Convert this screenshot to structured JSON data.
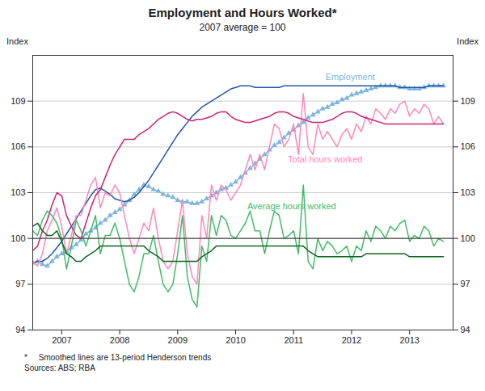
{
  "chart_data": {
    "type": "line",
    "title": "Employment and Hours Worked*",
    "subtitle": "2007 average = 100",
    "ylabel_left": "Index",
    "ylabel_right": "Index",
    "footnote": "*     Smoothed lines are 13-period Henderson trends",
    "sources": "Sources: ABS; RBA",
    "xlim": [
      2006.5,
      2013.75
    ],
    "xticks": [
      2007,
      2008,
      2009,
      2010,
      2011,
      2012,
      2013
    ],
    "ylim": [
      94,
      112
    ],
    "yticks": [
      94,
      97,
      100,
      103,
      106,
      109
    ],
    "y2lim": [
      94,
      112
    ],
    "y2ticks": [
      94,
      97,
      100,
      103,
      106,
      109
    ],
    "grid": "y",
    "hline": {
      "y": 100,
      "color": "#444444"
    },
    "x": [
      2006.5,
      2006.583,
      2006.667,
      2006.75,
      2006.833,
      2006.917,
      2007.0,
      2007.083,
      2007.167,
      2007.25,
      2007.333,
      2007.417,
      2007.5,
      2007.583,
      2007.667,
      2007.75,
      2007.833,
      2007.917,
      2008.0,
      2008.083,
      2008.167,
      2008.25,
      2008.333,
      2008.417,
      2008.5,
      2008.583,
      2008.667,
      2008.75,
      2008.833,
      2008.917,
      2009.0,
      2009.083,
      2009.167,
      2009.25,
      2009.333,
      2009.417,
      2009.5,
      2009.583,
      2009.667,
      2009.75,
      2009.833,
      2009.917,
      2010.0,
      2010.083,
      2010.167,
      2010.25,
      2010.333,
      2010.417,
      2010.5,
      2010.583,
      2010.667,
      2010.75,
      2010.833,
      2010.917,
      2011.0,
      2011.083,
      2011.167,
      2011.25,
      2011.333,
      2011.417,
      2011.5,
      2011.583,
      2011.667,
      2011.75,
      2011.833,
      2011.917,
      2012.0,
      2012.083,
      2012.167,
      2012.25,
      2012.333,
      2012.417,
      2012.5,
      2012.583,
      2012.667,
      2012.75,
      2012.833,
      2012.917,
      2013.0,
      2013.083,
      2013.167,
      2013.25,
      2013.333,
      2013.417,
      2013.5,
      2013.583
    ],
    "series": [
      {
        "color": "#7eb5e0",
        "marker": "triangle",
        "values": [
          98.4,
          98.5,
          98.3,
          98.2,
          98.5,
          98.8,
          99.0,
          99.1,
          99.4,
          99.6,
          99.9,
          100.3,
          100.5,
          100.7,
          101.0,
          101.2,
          101.5,
          101.7,
          101.9,
          102.2,
          102.5,
          102.9,
          103.2,
          103.5,
          103.4,
          103.2,
          103.1,
          102.9,
          102.8,
          102.7,
          102.5,
          102.4,
          102.4,
          102.3,
          102.3,
          102.4,
          102.6,
          102.8,
          103.0,
          103.2,
          103.3,
          103.5,
          103.7,
          104.0,
          104.3,
          104.6,
          104.9,
          105.2,
          105.5,
          105.8,
          106.1,
          106.3,
          106.6,
          106.9,
          107.1,
          107.4,
          107.6,
          107.9,
          108.1,
          108.3,
          108.5,
          108.6,
          108.8,
          108.9,
          109.1,
          109.2,
          109.4,
          109.5,
          109.6,
          109.7,
          109.8,
          109.9,
          110.0,
          110.0,
          110.0,
          110.0,
          109.9,
          109.9,
          109.8,
          109.8,
          109.8,
          109.9,
          110.0,
          110.0,
          110.0,
          110.0
        ]
      },
      {
        "color": "#2255aa",
        "values": [
          98.4,
          98.5,
          98.5,
          98.7,
          99.0,
          99.4,
          99.8,
          100.3,
          100.8,
          101.3,
          101.8,
          102.3,
          102.8,
          103.2,
          103.3,
          103.1,
          102.9,
          102.6,
          102.5,
          102.4,
          102.5,
          102.7,
          103.0,
          103.4,
          103.8,
          104.3,
          104.8,
          105.3,
          105.8,
          106.3,
          106.8,
          107.2,
          107.6,
          108.0,
          108.3,
          108.6,
          108.8,
          109.0,
          109.2,
          109.4,
          109.6,
          109.8,
          109.9,
          110.0,
          110.0,
          110.0,
          109.9,
          109.9,
          109.9,
          109.9,
          109.9,
          109.9,
          110.0,
          110.0,
          110.0,
          110.0,
          110.0,
          110.0,
          110.0,
          110.0,
          110.0,
          110.0,
          110.0,
          110.0,
          110.0,
          110.0,
          110.0,
          110.0,
          110.0,
          110.0,
          110.0,
          110.0,
          110.0,
          110.0,
          110.0,
          110.0,
          109.9,
          109.9,
          109.9,
          109.9,
          109.9,
          109.9,
          110.0,
          110.0,
          110.0,
          110.0
        ]
      },
      {
        "color": "#ff88bb",
        "values": [
          98.5,
          98.2,
          99.0,
          100.5,
          101.2,
          102.0,
          100.8,
          99.0,
          100.2,
          101.5,
          101.5,
          102.5,
          103.5,
          104.0,
          102.0,
          103.0,
          102.8,
          103.5,
          103.0,
          101.5,
          100.0,
          99.0,
          100.0,
          101.0,
          100.5,
          102.0,
          100.0,
          98.5,
          98.0,
          98.5,
          100.5,
          102.5,
          99.0,
          97.5,
          97.0,
          101.5,
          100.0,
          103.5,
          102.5,
          103.5,
          103.2,
          102.5,
          103.0,
          103.5,
          104.5,
          105.5,
          104.5,
          105.5,
          104.5,
          106.0,
          107.5,
          107.2,
          106.0,
          106.5,
          107.5,
          105.5,
          109.5,
          106.0,
          105.5,
          107.5,
          106.5,
          107.0,
          106.5,
          106.0,
          106.8,
          107.2,
          106.5,
          107.5,
          107.0,
          108.0,
          107.5,
          108.5,
          108.2,
          107.8,
          108.5,
          108.2,
          108.8,
          109.0,
          108.0,
          108.5,
          108.2,
          108.8,
          108.5,
          107.5,
          108.0,
          107.5
        ]
      },
      {
        "color": "#cc2277",
        "values": [
          99.2,
          99.5,
          100.5,
          101.2,
          102.2,
          103.0,
          102.8,
          101.5,
          100.8,
          100.2,
          100.0,
          101.0,
          102.0,
          102.8,
          103.2,
          104.0,
          104.8,
          105.5,
          106.0,
          106.5,
          106.5,
          106.5,
          106.8,
          107.0,
          107.2,
          107.5,
          107.8,
          108.0,
          108.2,
          108.3,
          108.2,
          108.0,
          107.8,
          107.7,
          107.8,
          107.8,
          107.9,
          108.0,
          108.2,
          108.3,
          108.3,
          108.0,
          107.8,
          107.7,
          107.6,
          107.6,
          107.7,
          107.8,
          107.9,
          108.0,
          108.2,
          108.3,
          108.3,
          108.2,
          108.0,
          107.9,
          107.8,
          107.7,
          107.6,
          107.6,
          107.6,
          107.7,
          107.8,
          108.0,
          108.2,
          108.3,
          108.3,
          108.2,
          108.0,
          107.9,
          107.8,
          107.7,
          107.6,
          107.5,
          107.5,
          107.5,
          107.5,
          107.5,
          107.5,
          107.5,
          107.5,
          107.5,
          107.5,
          107.5,
          107.5,
          107.5
        ]
      },
      {
        "color": "#44bb66",
        "values": [
          100.5,
          100.2,
          101.2,
          101.8,
          101.5,
          101.0,
          100.0,
          98.0,
          99.5,
          101.2,
          100.5,
          99.5,
          100.5,
          101.5,
          99.0,
          100.2,
          100.2,
          101.0,
          100.0,
          98.5,
          97.0,
          96.5,
          97.5,
          99.0,
          99.0,
          100.2,
          98.5,
          97.0,
          96.5,
          97.0,
          99.0,
          101.5,
          97.5,
          96.0,
          95.5,
          99.5,
          98.5,
          101.5,
          100.2,
          101.5,
          101.2,
          100.2,
          100.0,
          100.5,
          101.0,
          101.8,
          100.5,
          100.5,
          99.0,
          100.5,
          101.8,
          101.5,
          100.0,
          100.2,
          100.5,
          99.0,
          103.5,
          98.5,
          98.0,
          100.0,
          99.2,
          99.8,
          99.5,
          99.0,
          99.2,
          99.5,
          98.5,
          99.5,
          99.2,
          100.5,
          99.8,
          100.8,
          100.5,
          100.0,
          100.8,
          100.5,
          101.0,
          101.2,
          99.8,
          100.2,
          100.0,
          100.8,
          100.5,
          99.5,
          100.0,
          99.8
        ]
      },
      {
        "color": "#116622",
        "values": [
          100.8,
          101.0,
          100.5,
          100.2,
          100.2,
          100.5,
          99.8,
          99.0,
          98.8,
          98.5,
          98.5,
          98.8,
          99.0,
          99.2,
          99.5,
          99.5,
          99.5,
          99.5,
          99.5,
          99.5,
          99.5,
          99.5,
          99.5,
          99.5,
          99.2,
          99.0,
          98.8,
          98.5,
          98.5,
          98.5,
          98.5,
          98.5,
          98.5,
          98.5,
          98.5,
          98.8,
          99.0,
          99.2,
          99.5,
          99.5,
          99.5,
          99.5,
          99.5,
          99.5,
          99.5,
          99.5,
          99.5,
          99.5,
          99.5,
          99.5,
          99.5,
          99.5,
          99.5,
          99.5,
          99.5,
          99.5,
          99.5,
          99.2,
          99.0,
          98.8,
          98.8,
          98.8,
          98.8,
          98.8,
          98.8,
          98.8,
          98.8,
          98.8,
          98.8,
          99.0,
          99.0,
          99.0,
          99.0,
          99.0,
          99.0,
          99.0,
          99.0,
          99.0,
          98.8,
          98.8,
          98.8,
          98.8,
          98.8,
          98.8,
          98.8,
          98.8
        ]
      }
    ],
    "annotations": [
      {
        "text": "Employment",
        "x": 2011.55,
        "y": 110.4,
        "color": "#7eb5e0"
      },
      {
        "text": "Total hours worked",
        "x": 2010.9,
        "y": 105.0,
        "color": "#ff88bb"
      },
      {
        "text": "Average hours worked",
        "x": 2010.2,
        "y": 101.9,
        "color": "#44bb66"
      }
    ]
  }
}
